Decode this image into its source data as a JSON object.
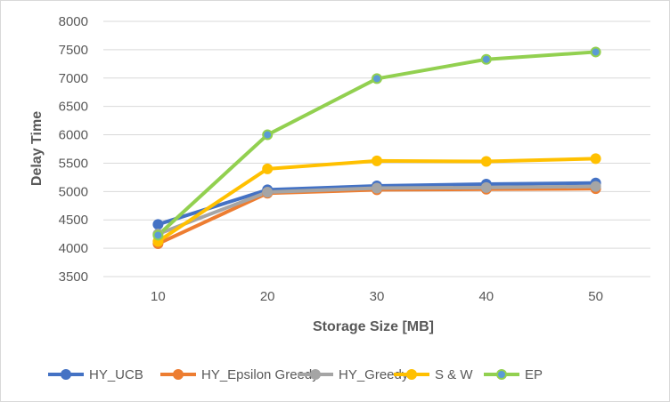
{
  "chart_data": {
    "type": "line",
    "title": "",
    "xlabel": "Storage Size [MB]",
    "ylabel": "Delay Time",
    "x": [
      10,
      20,
      30,
      40,
      50
    ],
    "ylim": [
      3500,
      8000
    ],
    "yticks": [
      3500,
      4000,
      4500,
      5000,
      5500,
      6000,
      6500,
      7000,
      7500,
      8000
    ],
    "grid": true,
    "legend_position": "bottom",
    "series": [
      {
        "name": "HY_UCB",
        "color": "#4472C4",
        "values": [
          4420,
          5030,
          5100,
          5130,
          5150
        ]
      },
      {
        "name": "HY_Epsilon Greedy",
        "color": "#ED7D31",
        "values": [
          4080,
          4970,
          5030,
          5040,
          5050
        ]
      },
      {
        "name": "HY_Greedy",
        "color": "#A5A5A5",
        "values": [
          4250,
          4990,
          5060,
          5070,
          5090
        ]
      },
      {
        "name": "S & W",
        "color": "#FFC000",
        "values": [
          4120,
          5400,
          5540,
          5530,
          5580
        ]
      },
      {
        "name": "EP",
        "color": "#92D050",
        "marker_color": "#5B9BD5",
        "values": [
          4230,
          6000,
          6990,
          7330,
          7460
        ]
      }
    ]
  }
}
